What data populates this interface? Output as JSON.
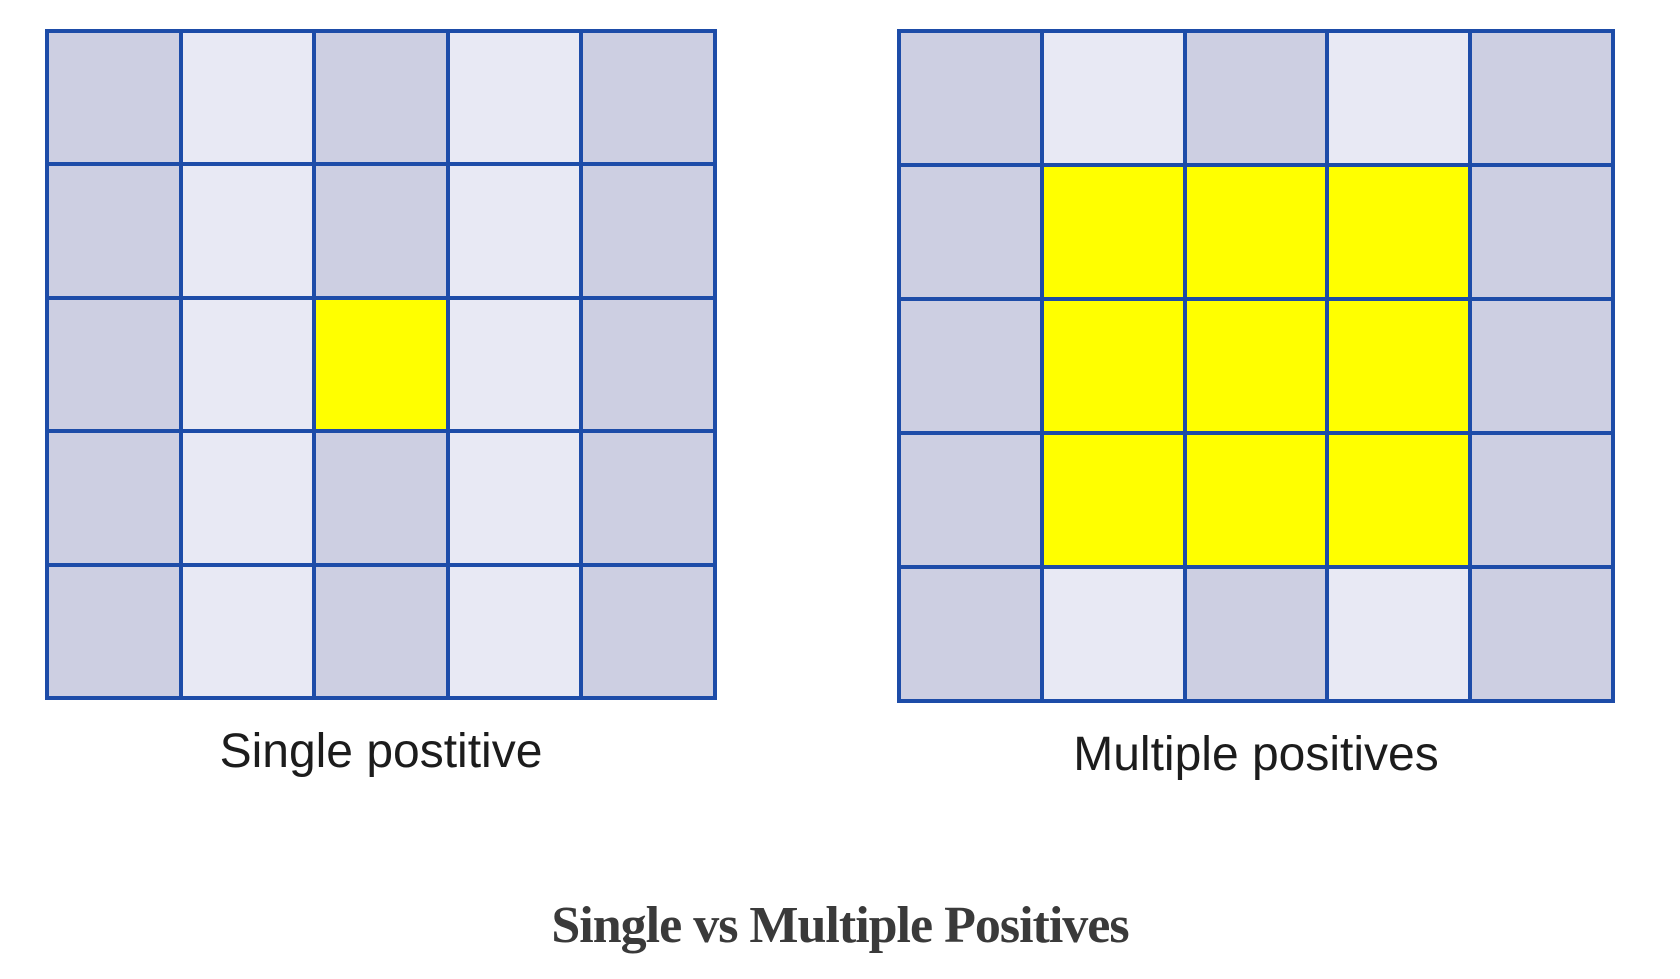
{
  "figure_title": "Single vs Multiple Positives",
  "colors": {
    "cell_dark": "#cdcfe2",
    "cell_light": "#e8e9f4",
    "cell_positive": "#ffff00",
    "grid_line": "#1d4ca8",
    "label_text": "#1c1c1c",
    "caption_text": "#3a3a3a"
  },
  "panels": [
    {
      "id": "single-positive",
      "label": "Single postitive",
      "rows": 5,
      "cols": 5,
      "cells": [
        [
          "dark",
          "light",
          "dark",
          "light",
          "dark"
        ],
        [
          "dark",
          "light",
          "dark",
          "light",
          "dark"
        ],
        [
          "dark",
          "light",
          "yellow",
          "light",
          "dark"
        ],
        [
          "dark",
          "light",
          "dark",
          "light",
          "dark"
        ],
        [
          "dark",
          "light",
          "dark",
          "light",
          "dark"
        ]
      ]
    },
    {
      "id": "multiple-positives",
      "label": "Multiple positives",
      "rows": 5,
      "cols": 5,
      "cells": [
        [
          "dark",
          "light",
          "dark",
          "light",
          "dark"
        ],
        [
          "dark",
          "yellow",
          "yellow",
          "yellow",
          "dark"
        ],
        [
          "dark",
          "yellow",
          "yellow",
          "yellow",
          "dark"
        ],
        [
          "dark",
          "yellow",
          "yellow",
          "yellow",
          "dark"
        ],
        [
          "dark",
          "light",
          "dark",
          "light",
          "dark"
        ]
      ]
    }
  ],
  "caption": "Single vs Multiple Positives"
}
